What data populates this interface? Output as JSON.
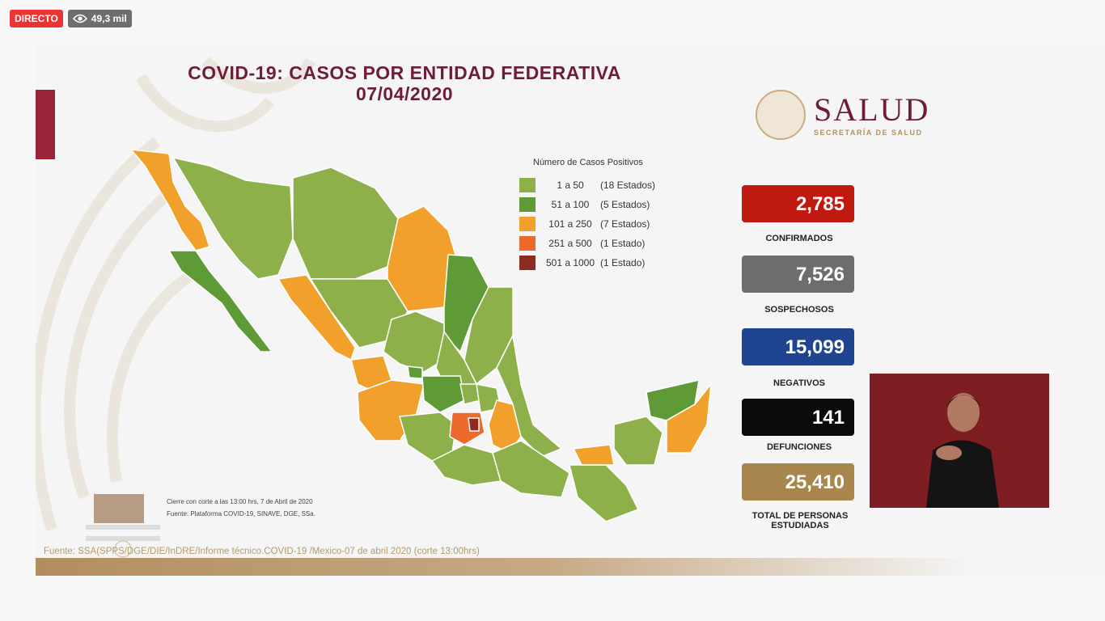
{
  "live_badge": "DIRECTO",
  "views": "49,3 mil",
  "title_line1": "COVID-19: CASOS POR ENTIDAD FEDERATIVA",
  "title_line2": "07/04/2020",
  "logo": {
    "name": "SALUD",
    "subtitle": "SECRETARÍA DE SALUD"
  },
  "legend": {
    "title": "Número de Casos Positivos",
    "items": [
      {
        "range": "1 a   50",
        "count": "(18 Estados)",
        "color": "#8db04b"
      },
      {
        "range": "51 a  100",
        "count": "(5 Estados)",
        "color": "#5e9b37"
      },
      {
        "range": "101 a  250",
        "count": "(7 Estados)",
        "color": "#f2a02c"
      },
      {
        "range": "251 a  500",
        "count": "(1 Estado)",
        "color": "#ec6a2b"
      },
      {
        "range": "501 a 1000",
        "count": "(1 Estado)",
        "color": "#8e2a1f"
      }
    ]
  },
  "stats": [
    {
      "value": "2,785",
      "label": "CONFIRMADOS",
      "color": "#c0190f"
    },
    {
      "value": "7,526",
      "label": "SOSPECHOSOS",
      "color": "#6d6d6d"
    },
    {
      "value": "15,099",
      "label": "NEGATIVOS",
      "color": "#1f4591"
    },
    {
      "value": "141",
      "label": "DEFUNCIONES",
      "color": "#0b0b0b"
    },
    {
      "value": "25,410",
      "label": "TOTAL DE PERSONAS ESTUDIADAS",
      "color": "#a8874e"
    }
  ],
  "notes": {
    "line1": "Cierre con corte a las 13:00 hrs, 7 de Abril de 2020",
    "line2": "Fuente: Plataforma COVID-19, SINAVE, DGE, SSa."
  },
  "fuente": "Fuente: SSA(SPPS/DGE/DIE/InDRE/Informe técnico.COVID-19 /Mexico-07 de abril 2020 (corte 13:00hrs)",
  "historia_logo": "HISTORIA DE MÉXICO",
  "colors": {
    "low": "#8db04b",
    "mid": "#5e9b37",
    "high": "#f2a02c",
    "higher": "#ec6a2b",
    "top": "#8e2a1f",
    "wine": "#6f1d36"
  }
}
